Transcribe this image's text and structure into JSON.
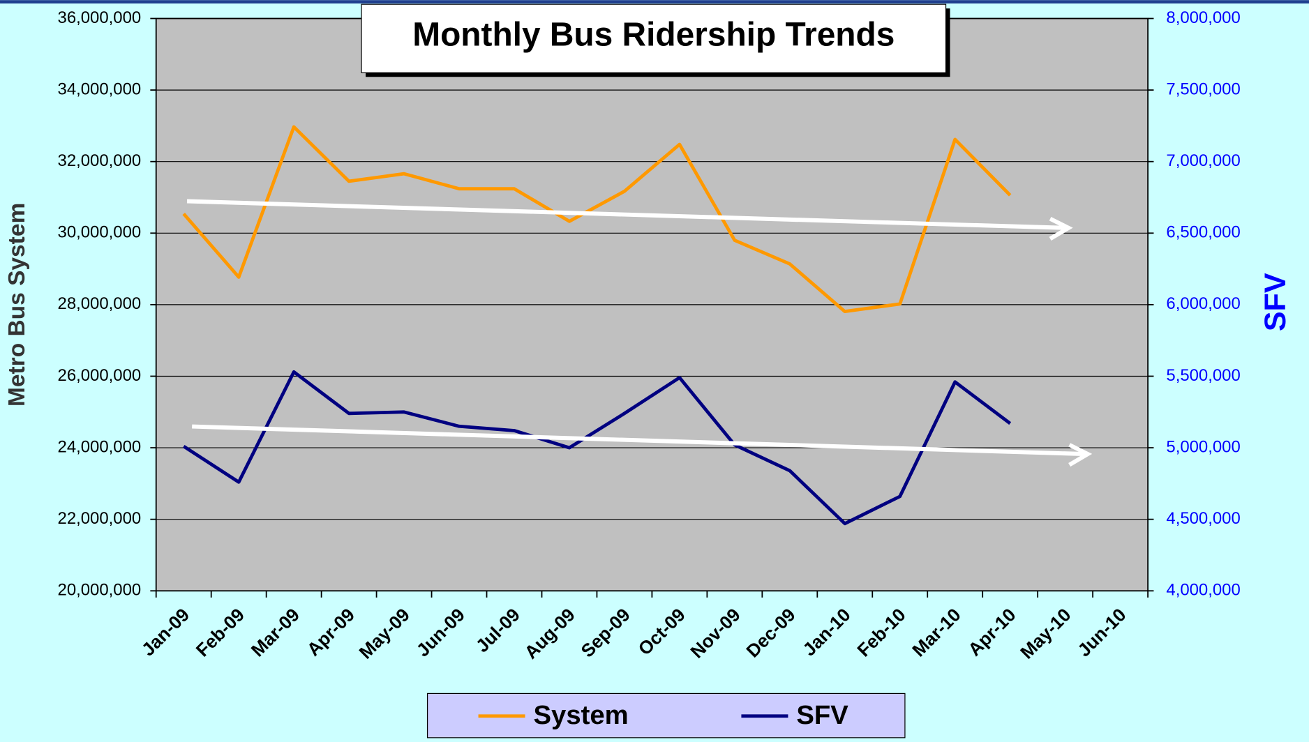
{
  "chart_data": {
    "type": "line",
    "title": "Monthly Bus Ridership Trends",
    "ylabel": "Metro Bus System",
    "y2label": "SFV",
    "categories": [
      "Jan-09",
      "Feb-09",
      "Mar-09",
      "Apr-09",
      "May-09",
      "Jun-09",
      "Jul-09",
      "Aug-09",
      "Sep-09",
      "Oct-09",
      "Nov-09",
      "Dec-09",
      "Jan-10",
      "Feb-10",
      "Mar-10",
      "Apr-10",
      "May-10",
      "Jun-10"
    ],
    "series": [
      {
        "name": "System",
        "color": "#ff9900",
        "axis": "y",
        "values": [
          30540000,
          28770000,
          32970000,
          31450000,
          31660000,
          31240000,
          31240000,
          30330000,
          31170000,
          32480000,
          29800000,
          29140000,
          27810000,
          28020000,
          32620000,
          31060000,
          null,
          null
        ]
      },
      {
        "name": "SFV",
        "color": "#000080",
        "axis": "y2",
        "values": [
          5010000,
          4760000,
          5530000,
          5240000,
          5250000,
          5150000,
          5120000,
          5000000,
          5240000,
          5490000,
          5020000,
          4840000,
          4470000,
          4660000,
          5460000,
          5170000,
          null,
          null
        ]
      }
    ],
    "ylim": [
      20000000,
      36000000
    ],
    "yticks": [
      {
        "value": 20000000,
        "label": "20,000,000"
      },
      {
        "value": 22000000,
        "label": "22,000,000"
      },
      {
        "value": 24000000,
        "label": "24,000,000"
      },
      {
        "value": 26000000,
        "label": "26,000,000"
      },
      {
        "value": 28000000,
        "label": "28,000,000"
      },
      {
        "value": 30000000,
        "label": "30,000,000"
      },
      {
        "value": 32000000,
        "label": "32,000,000"
      },
      {
        "value": 34000000,
        "label": "34,000,000"
      },
      {
        "value": 36000000,
        "label": "36,000,000"
      }
    ],
    "y2lim": [
      4000000,
      8000000
    ],
    "y2ticks": [
      {
        "value": 4000000,
        "label": "4,000,000"
      },
      {
        "value": 4500000,
        "label": "4,500,000"
      },
      {
        "value": 5000000,
        "label": "5,000,000"
      },
      {
        "value": 5500000,
        "label": "5,500,000"
      },
      {
        "value": 6000000,
        "label": "6,000,000"
      },
      {
        "value": 6500000,
        "label": "6,500,000"
      },
      {
        "value": 7000000,
        "label": "7,000,000"
      },
      {
        "value": 7500000,
        "label": "7,500,000"
      },
      {
        "value": 8000000,
        "label": "8,000,000"
      }
    ],
    "grid": true,
    "legend": "bottom"
  }
}
